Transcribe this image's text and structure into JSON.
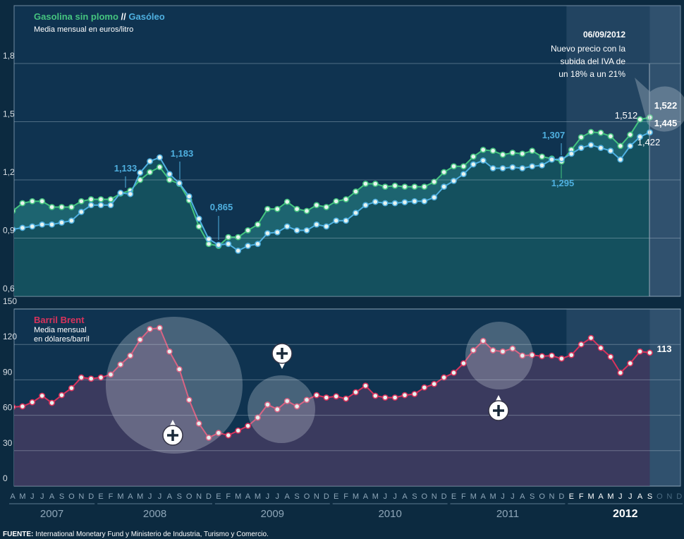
{
  "chart_data": [
    {
      "type": "line",
      "title_separator": "//",
      "subtitle": "Media mensual en euros/litro",
      "ylim": [
        0.6,
        1.8
      ],
      "yticks": [
        {
          "value": 0.6,
          "label": "0,6"
        },
        {
          "value": 0.9,
          "label": "0,9"
        },
        {
          "value": 1.2,
          "label": "1,2"
        },
        {
          "value": 1.5,
          "label": "1,5"
        },
        {
          "value": 1.8,
          "label": "1,8"
        }
      ],
      "grid": true,
      "annotation": {
        "date": "06/09/2012",
        "lines": [
          "Nuevo precio con la",
          "subida del IVA de",
          "un 18% a un 21%"
        ]
      },
      "series": [
        {
          "name": "Gasolina sin plomo",
          "color": "#45c47f",
          "values": [
            1.04,
            1.08,
            1.09,
            1.09,
            1.06,
            1.06,
            1.06,
            1.09,
            1.1,
            1.1,
            1.1,
            1.13,
            1.145,
            1.2,
            1.24,
            1.266,
            1.2,
            1.18,
            1.095,
            0.96,
            0.87,
            0.86,
            0.905,
            0.905,
            0.94,
            0.97,
            1.05,
            1.05,
            1.087,
            1.05,
            1.04,
            1.07,
            1.06,
            1.09,
            1.1,
            1.14,
            1.18,
            1.18,
            1.165,
            1.17,
            1.165,
            1.165,
            1.165,
            1.19,
            1.24,
            1.27,
            1.27,
            1.32,
            1.355,
            1.35,
            1.33,
            1.34,
            1.335,
            1.35,
            1.32,
            1.31,
            1.295,
            1.355,
            1.42,
            1.447,
            1.443,
            1.425,
            1.375,
            1.433,
            1.512,
            1.522,
            null,
            null,
            null
          ],
          "value_labels": [
            null,
            null,
            null,
            null,
            null,
            null,
            null,
            null,
            null,
            null,
            null,
            null,
            null,
            null,
            null,
            null,
            null,
            null,
            null,
            null,
            null,
            null,
            null,
            null,
            null,
            null,
            null,
            null,
            null,
            null,
            null,
            null,
            null,
            null,
            null,
            null,
            null,
            null,
            null,
            null,
            null,
            null,
            null,
            null,
            null,
            null,
            null,
            null,
            null,
            null,
            null,
            null,
            null,
            null,
            null,
            null,
            "1,295",
            null,
            null,
            null,
            null,
            null,
            null,
            null,
            "1,512",
            "1,522",
            null,
            null,
            null
          ]
        },
        {
          "name": "Gasóleo",
          "color": "#4fb0e0",
          "values": [
            0.945,
            0.953,
            0.96,
            0.97,
            0.97,
            0.98,
            0.99,
            1.035,
            1.07,
            1.07,
            1.07,
            1.133,
            1.127,
            1.237,
            1.296,
            1.316,
            1.23,
            1.183,
            1.115,
            1.0,
            0.895,
            0.865,
            0.87,
            0.835,
            0.86,
            0.87,
            0.925,
            0.93,
            0.96,
            0.94,
            0.94,
            0.97,
            0.96,
            0.99,
            0.99,
            1.03,
            1.07,
            1.087,
            1.08,
            1.08,
            1.085,
            1.09,
            1.09,
            1.11,
            1.165,
            1.195,
            1.23,
            1.28,
            1.3,
            1.26,
            1.26,
            1.265,
            1.26,
            1.27,
            1.275,
            1.305,
            1.307,
            1.335,
            1.365,
            1.38,
            1.365,
            1.35,
            1.305,
            1.375,
            1.422,
            1.445,
            null,
            null,
            null
          ],
          "value_labels": [
            null,
            null,
            null,
            null,
            null,
            null,
            null,
            null,
            null,
            null,
            null,
            "1,133",
            null,
            null,
            null,
            null,
            null,
            "1,183",
            null,
            null,
            null,
            "0,865",
            null,
            null,
            null,
            null,
            null,
            null,
            null,
            null,
            null,
            null,
            null,
            null,
            null,
            null,
            null,
            null,
            null,
            null,
            null,
            null,
            null,
            null,
            null,
            null,
            null,
            null,
            null,
            null,
            null,
            null,
            null,
            null,
            null,
            null,
            "1,307",
            null,
            null,
            null,
            null,
            null,
            null,
            null,
            "1,422",
            "1,445",
            null,
            null,
            null
          ]
        }
      ]
    },
    {
      "type": "line",
      "title": "Barril Brent",
      "subtitle": [
        "Media mensual",
        "en dólares/barril"
      ],
      "ylim": [
        0,
        150
      ],
      "yticks": [
        0,
        30,
        60,
        90,
        120,
        150
      ],
      "grid": true,
      "categories": [
        "A",
        "M",
        "J",
        "J",
        "A",
        "S",
        "O",
        "N",
        "D",
        "E",
        "F",
        "M",
        "A",
        "M",
        "J",
        "J",
        "A",
        "S",
        "O",
        "N",
        "D",
        "E",
        "F",
        "M",
        "A",
        "M",
        "J",
        "J",
        "A",
        "S",
        "O",
        "N",
        "D",
        "E",
        "F",
        "M",
        "A",
        "M",
        "J",
        "J",
        "A",
        "S",
        "O",
        "N",
        "D",
        "E",
        "F",
        "M",
        "A",
        "M",
        "J",
        "J",
        "A",
        "S",
        "O",
        "N",
        "D",
        "E",
        "F",
        "M",
        "A",
        "M",
        "J",
        "J",
        "A",
        "S",
        "O",
        "N",
        "D"
      ],
      "years": [
        "2007",
        "2008",
        "2009",
        "2010",
        "2011",
        "2012"
      ],
      "series": [
        {
          "name": "Barril Brent",
          "color": "#d9335c",
          "values": [
            67,
            67.5,
            71,
            76.5,
            70.5,
            77,
            83,
            92,
            91,
            92,
            94.5,
            103,
            110.5,
            124,
            133,
            134,
            114,
            99,
            73,
            53,
            41,
            45,
            43,
            47,
            51,
            58,
            69,
            65,
            72,
            67.5,
            73,
            77,
            75,
            76,
            74,
            79.5,
            85,
            76.5,
            75,
            75,
            77,
            78,
            83.5,
            86.5,
            92,
            96,
            104,
            115,
            123,
            115,
            114,
            116.5,
            110.5,
            111,
            110,
            110.5,
            108,
            111,
            120,
            125.5,
            117,
            109.5,
            96,
            104,
            114,
            113,
            null,
            null,
            null
          ],
          "value_labels": [
            null,
            null,
            null,
            null,
            null,
            null,
            null,
            null,
            null,
            null,
            null,
            null,
            null,
            null,
            null,
            null,
            null,
            null,
            null,
            null,
            null,
            null,
            null,
            null,
            null,
            null,
            null,
            null,
            null,
            null,
            null,
            null,
            null,
            null,
            null,
            null,
            null,
            null,
            null,
            null,
            null,
            null,
            null,
            null,
            null,
            null,
            null,
            null,
            null,
            null,
            null,
            null,
            null,
            null,
            null,
            null,
            null,
            null,
            null,
            null,
            null,
            null,
            null,
            null,
            null,
            "113",
            null,
            null,
            null
          ]
        }
      ]
    }
  ],
  "source": {
    "label": "FUENTE:",
    "text": "International Monetary Fund y Ministerio de Industria, Turismo y Comercio."
  }
}
